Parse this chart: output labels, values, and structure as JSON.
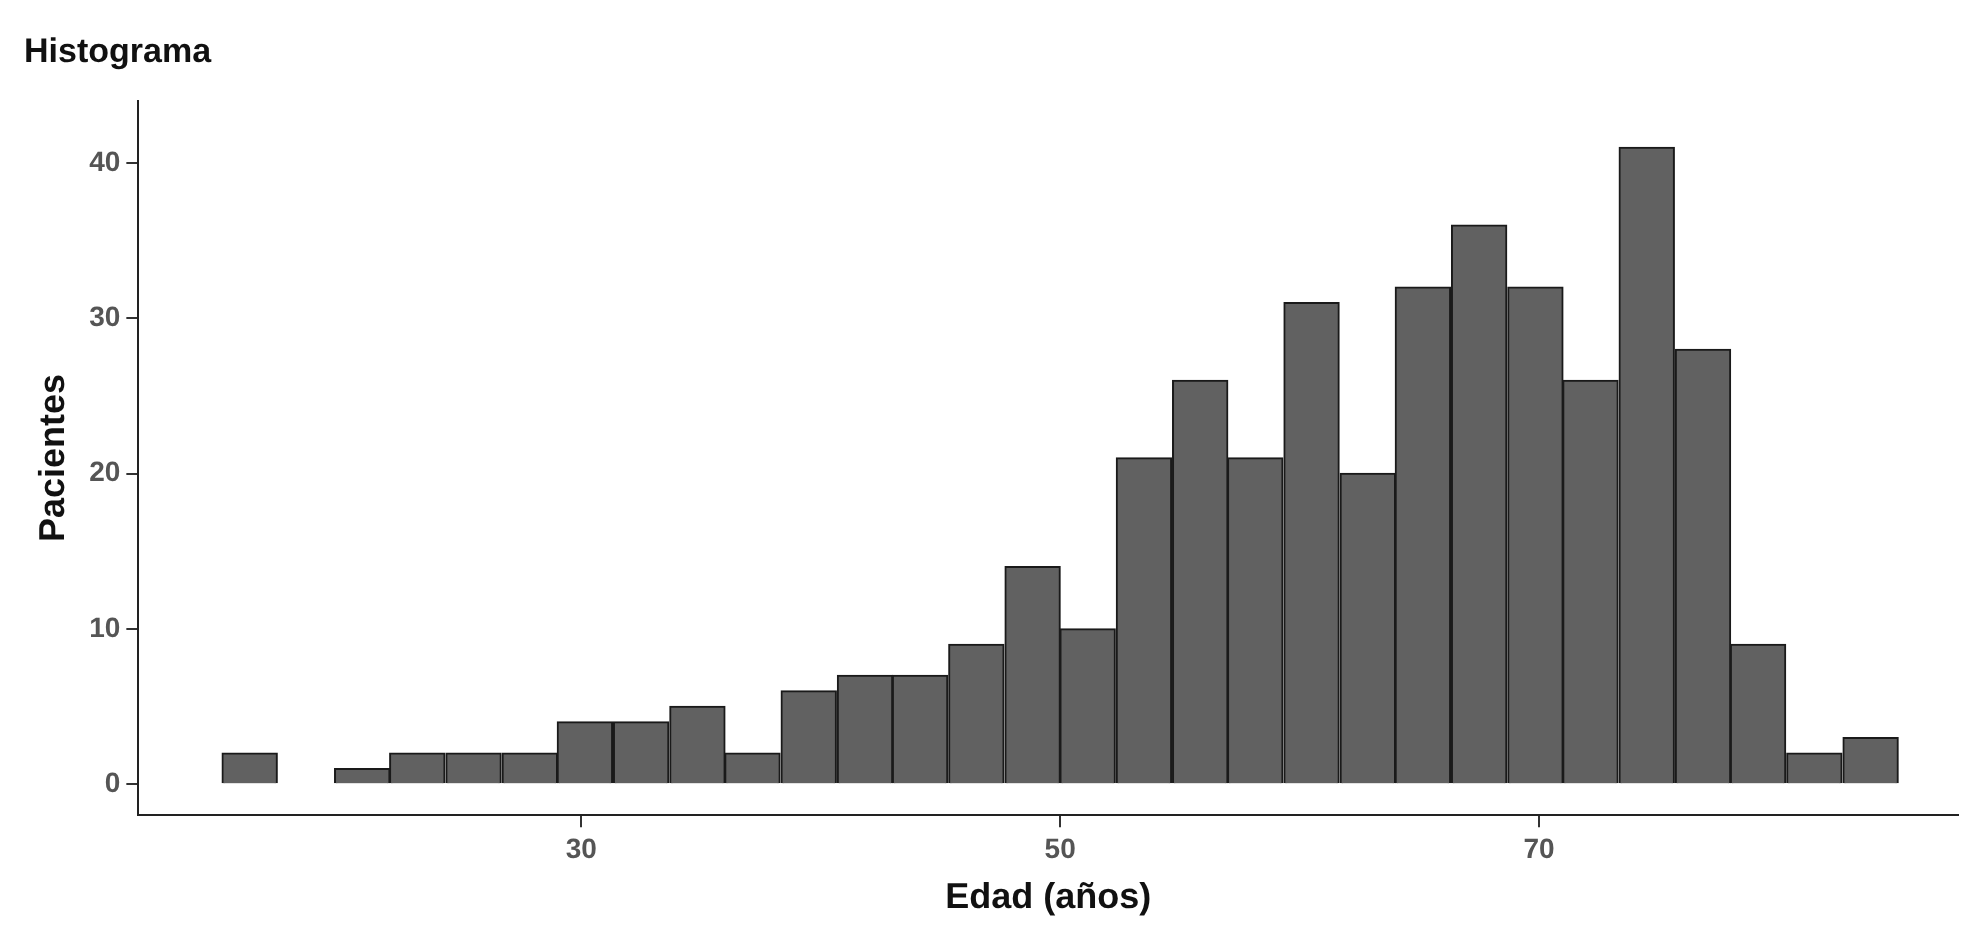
{
  "chart_data": {
    "type": "histogram",
    "title": "Histograma",
    "xlabel": "Edad (años)",
    "ylabel": "Pacientes",
    "bins": [
      15,
      17.3,
      19.7,
      22,
      24.3,
      26.7,
      29,
      31.3,
      33.7,
      36,
      38.3,
      40.7,
      43,
      45.3,
      47.7,
      50,
      52.3,
      54.7,
      57,
      59.3,
      61.7,
      64,
      66.3,
      68.7,
      71,
      73.3,
      75.7,
      78,
      80.3,
      82.7,
      85
    ],
    "values": [
      2,
      0,
      1,
      2,
      2,
      2,
      4,
      4,
      5,
      2,
      6,
      7,
      7,
      9,
      14,
      10,
      21,
      26,
      21,
      31,
      20,
      32,
      36,
      32,
      26,
      41,
      28,
      9,
      2,
      3
    ],
    "color": "#616161",
    "xlim": [
      11.5,
      87.5
    ],
    "xticks": [
      30,
      50,
      70
    ],
    "ylim": [
      -2,
      44
    ],
    "yticks": [
      0,
      10,
      20,
      30,
      40
    ],
    "grid": false,
    "legend": false
  }
}
